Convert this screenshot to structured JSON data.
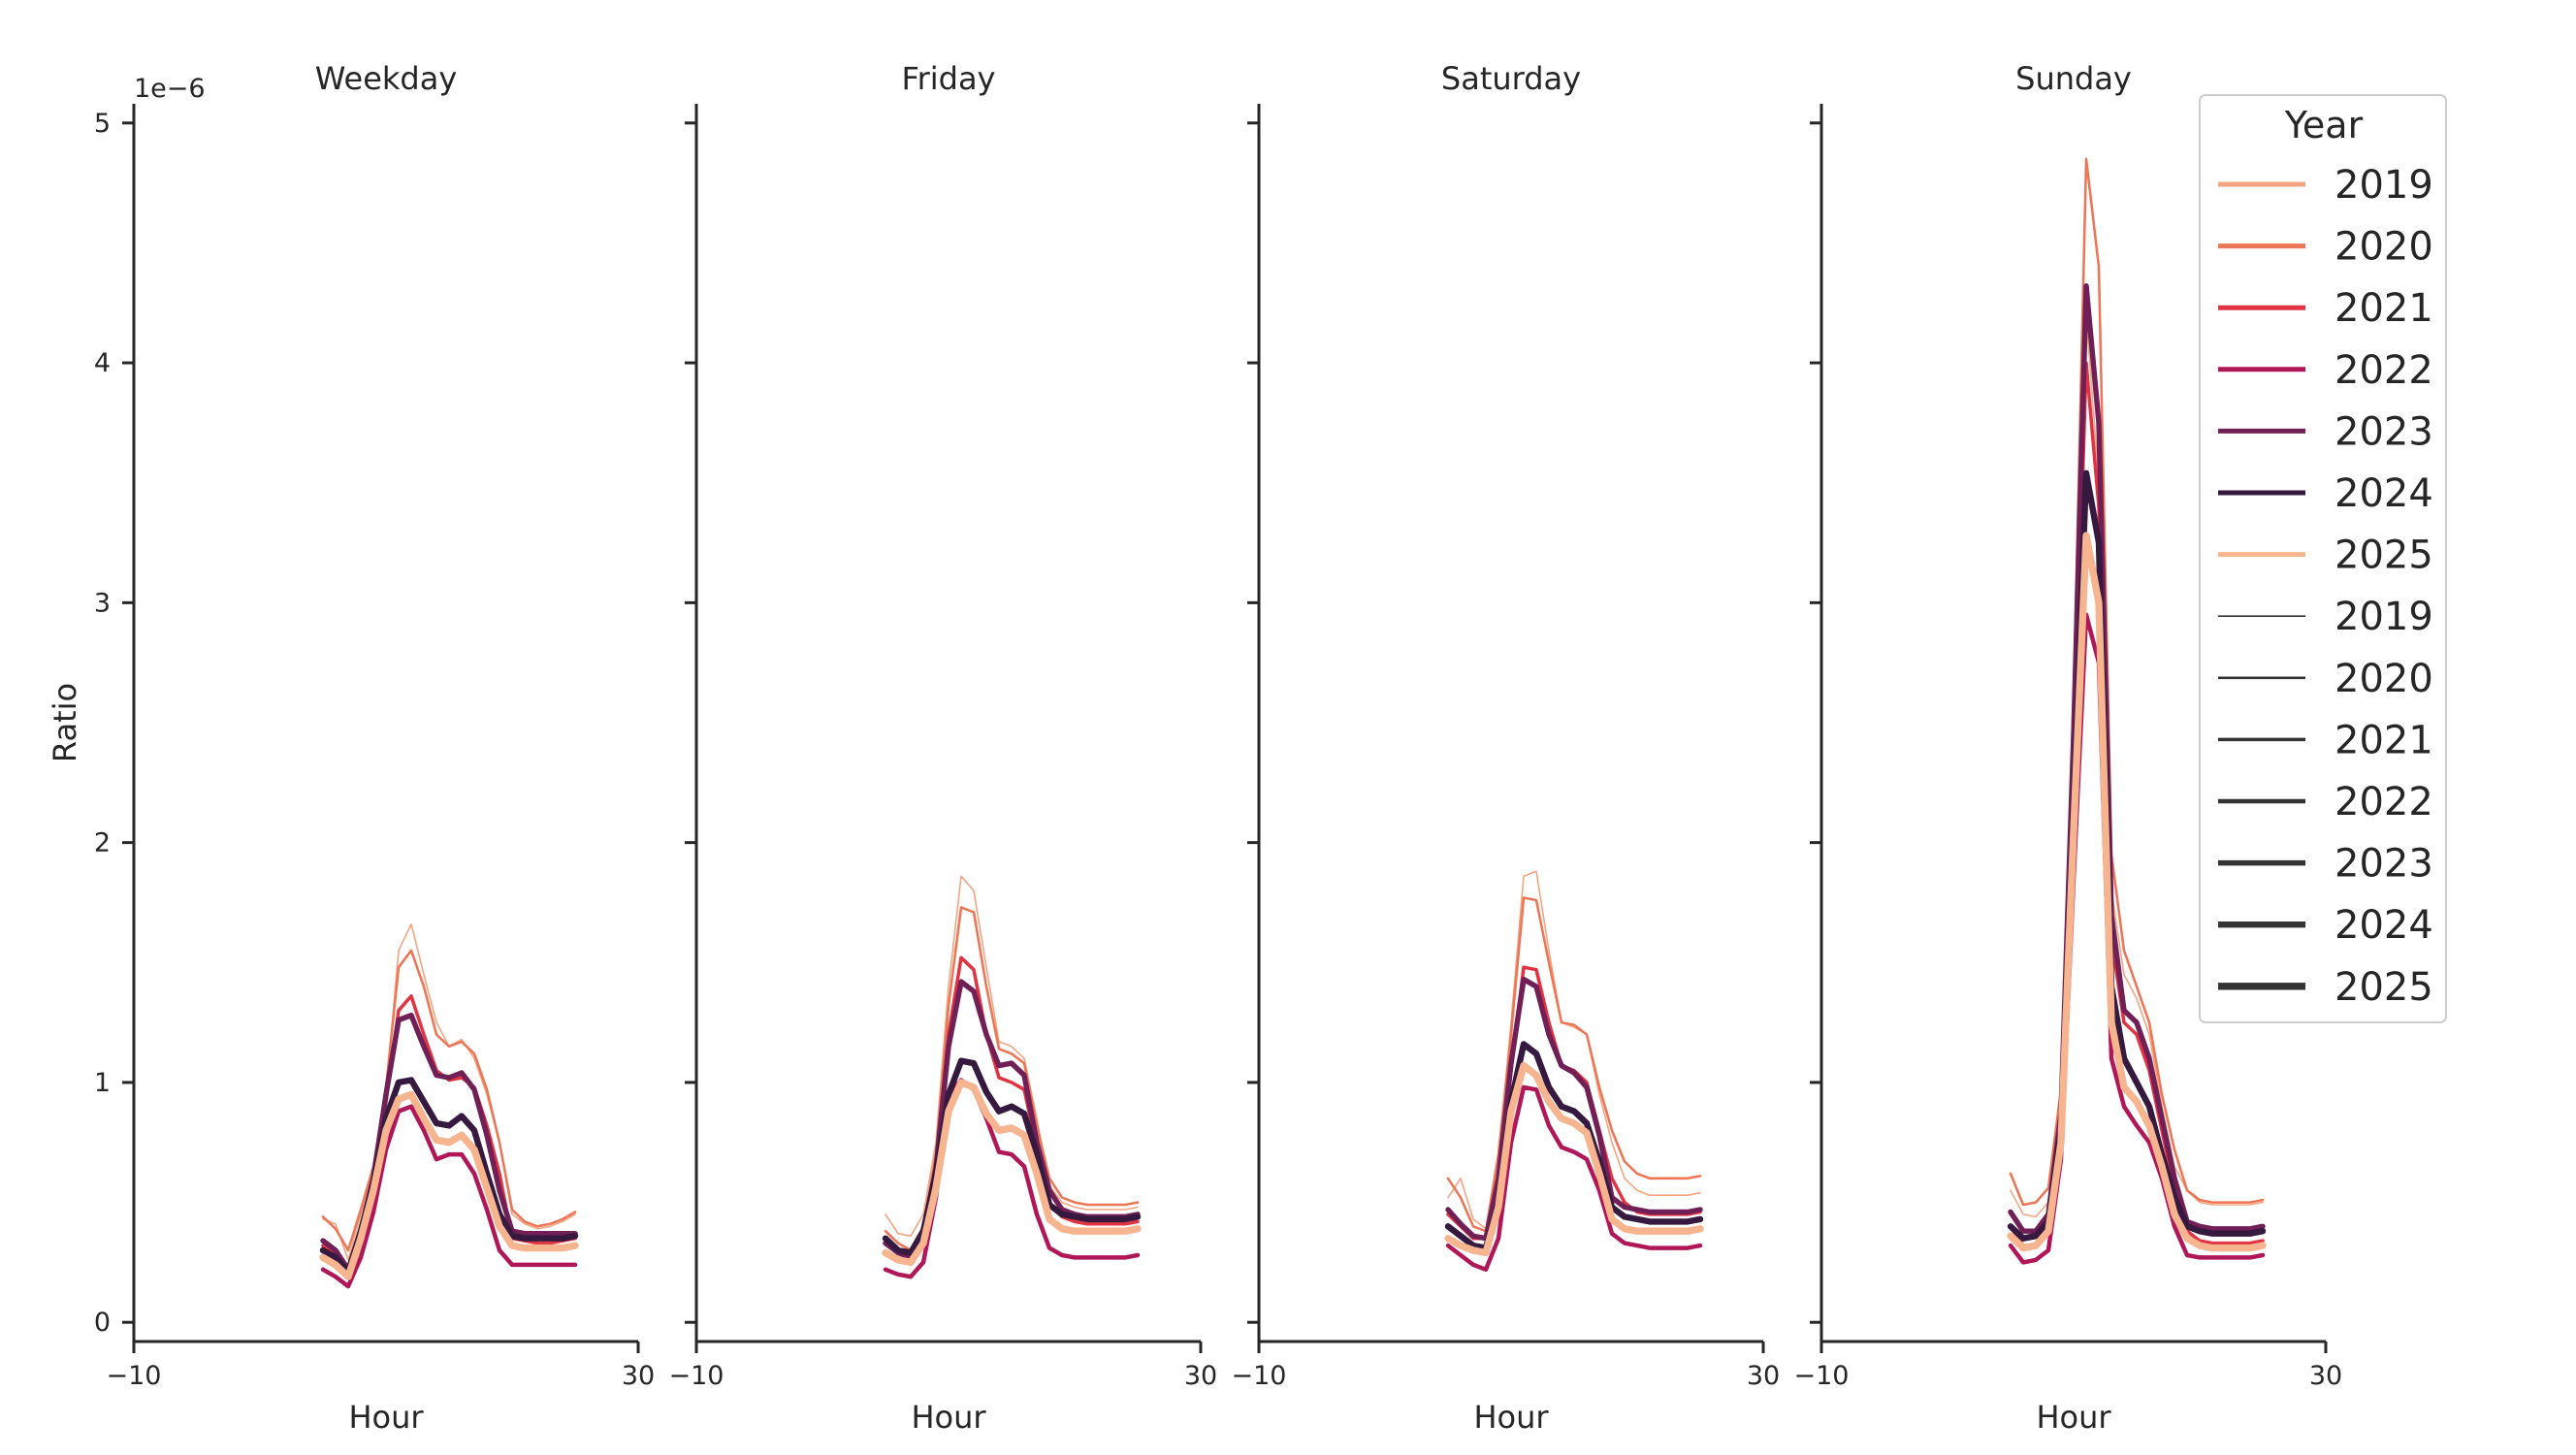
{
  "chart_data": {
    "type": "line",
    "ylabel": "Ratio",
    "y_offset_label": "1e−6",
    "ylim": [
      -0.08,
      5.08
    ],
    "yticks": [
      0,
      1,
      2,
      3,
      4,
      5
    ],
    "xlim": [
      -10,
      30
    ],
    "xticks": [
      "−10",
      "30"
    ],
    "x": [
      5,
      6,
      7,
      8,
      9,
      10,
      11,
      12,
      13,
      14,
      15,
      16,
      17,
      18,
      19,
      20,
      21,
      22,
      23,
      24,
      25
    ],
    "legend": {
      "title": "Year",
      "position": "upper right",
      "hue_entries": [
        "2019",
        "2020",
        "2021",
        "2022",
        "2023",
        "2024",
        "2025"
      ],
      "size_entries": [
        "2019",
        "2020",
        "2021",
        "2022",
        "2023",
        "2024",
        "2025"
      ]
    },
    "year_styles": [
      {
        "year": "2019",
        "color": "#f3a582",
        "width": 1.0
      },
      {
        "year": "2020",
        "color": "#ed7657",
        "width": 1.6
      },
      {
        "year": "2021",
        "color": "#e13342",
        "width": 2.2
      },
      {
        "year": "2022",
        "color": "#b01759",
        "width": 2.8
      },
      {
        "year": "2023",
        "color": "#701f57",
        "width": 3.4
      },
      {
        "year": "2024",
        "color": "#35193e",
        "width": 4.0
      },
      {
        "year": "2025",
        "color": "#f6b48f",
        "width": 4.6
      }
    ],
    "panels": [
      {
        "title": "Weekday",
        "series": [
          {
            "year": "2019",
            "values": [
              0.43,
              0.41,
              0.26,
              0.45,
              0.62,
              0.95,
              1.55,
              1.66,
              1.45,
              1.25,
              1.15,
              1.18,
              1.1,
              0.95,
              0.75,
              0.45,
              0.41,
              0.39,
              0.4,
              0.42,
              0.45
            ]
          },
          {
            "year": "2020",
            "values": [
              0.44,
              0.39,
              0.3,
              0.47,
              0.65,
              0.98,
              1.48,
              1.55,
              1.4,
              1.2,
              1.15,
              1.17,
              1.12,
              0.97,
              0.75,
              0.47,
              0.42,
              0.4,
              0.41,
              0.43,
              0.46
            ]
          },
          {
            "year": "2021",
            "values": [
              0.32,
              0.28,
              0.2,
              0.38,
              0.6,
              0.92,
              1.3,
              1.36,
              1.2,
              1.05,
              1.01,
              1.02,
              0.98,
              0.82,
              0.62,
              0.35,
              0.34,
              0.33,
              0.33,
              0.34,
              0.35
            ]
          },
          {
            "year": "2022",
            "values": [
              0.22,
              0.19,
              0.15,
              0.27,
              0.46,
              0.72,
              0.88,
              0.9,
              0.8,
              0.68,
              0.7,
              0.7,
              0.62,
              0.47,
              0.3,
              0.24,
              0.24,
              0.24,
              0.24,
              0.24,
              0.24
            ]
          },
          {
            "year": "2023",
            "values": [
              0.34,
              0.3,
              0.22,
              0.38,
              0.6,
              0.95,
              1.26,
              1.28,
              1.15,
              1.03,
              1.02,
              1.04,
              0.97,
              0.78,
              0.55,
              0.38,
              0.37,
              0.37,
              0.37,
              0.37,
              0.37
            ]
          },
          {
            "year": "2024",
            "values": [
              0.3,
              0.27,
              0.21,
              0.38,
              0.58,
              0.85,
              1.0,
              1.01,
              0.92,
              0.83,
              0.82,
              0.86,
              0.8,
              0.62,
              0.45,
              0.36,
              0.35,
              0.35,
              0.35,
              0.35,
              0.36
            ]
          },
          {
            "year": "2025",
            "values": [
              0.27,
              0.24,
              0.19,
              0.35,
              0.55,
              0.8,
              0.93,
              0.95,
              0.85,
              0.76,
              0.75,
              0.78,
              0.72,
              0.56,
              0.4,
              0.32,
              0.31,
              0.31,
              0.31,
              0.31,
              0.32
            ]
          }
        ]
      },
      {
        "title": "Friday",
        "series": [
          {
            "year": "2019",
            "values": [
              0.45,
              0.37,
              0.36,
              0.45,
              0.75,
              1.4,
              1.86,
              1.8,
              1.48,
              1.17,
              1.15,
              1.1,
              0.85,
              0.57,
              0.5,
              0.48,
              0.47,
              0.47,
              0.47,
              0.47,
              0.48
            ]
          },
          {
            "year": "2020",
            "values": [
              0.38,
              0.33,
              0.3,
              0.4,
              0.7,
              1.32,
              1.73,
              1.71,
              1.4,
              1.14,
              1.12,
              1.08,
              0.82,
              0.6,
              0.52,
              0.5,
              0.49,
              0.49,
              0.49,
              0.49,
              0.5
            ]
          },
          {
            "year": "2021",
            "values": [
              0.34,
              0.3,
              0.28,
              0.38,
              0.66,
              1.2,
              1.52,
              1.47,
              1.2,
              1.02,
              1.0,
              0.97,
              0.73,
              0.5,
              0.44,
              0.42,
              0.41,
              0.41,
              0.41,
              0.41,
              0.42
            ]
          },
          {
            "year": "2022",
            "values": [
              0.22,
              0.2,
              0.19,
              0.25,
              0.52,
              0.95,
              1.01,
              0.97,
              0.85,
              0.71,
              0.7,
              0.65,
              0.45,
              0.31,
              0.28,
              0.27,
              0.27,
              0.27,
              0.27,
              0.27,
              0.28
            ]
          },
          {
            "year": "2023",
            "values": [
              0.33,
              0.29,
              0.27,
              0.37,
              0.64,
              1.15,
              1.42,
              1.38,
              1.2,
              1.07,
              1.08,
              1.03,
              0.75,
              0.55,
              0.47,
              0.45,
              0.44,
              0.44,
              0.44,
              0.44,
              0.45
            ]
          },
          {
            "year": "2024",
            "values": [
              0.35,
              0.3,
              0.29,
              0.38,
              0.62,
              0.95,
              1.09,
              1.08,
              0.96,
              0.88,
              0.9,
              0.87,
              0.7,
              0.49,
              0.45,
              0.44,
              0.43,
              0.43,
              0.43,
              0.43,
              0.44
            ]
          },
          {
            "year": "2025",
            "values": [
              0.29,
              0.26,
              0.25,
              0.33,
              0.56,
              0.88,
              1.0,
              0.98,
              0.87,
              0.8,
              0.81,
              0.78,
              0.62,
              0.43,
              0.39,
              0.38,
              0.38,
              0.38,
              0.38,
              0.38,
              0.39
            ]
          }
        ]
      },
      {
        "title": "Saturday",
        "series": [
          {
            "year": "2019",
            "values": [
              0.52,
              0.6,
              0.43,
              0.39,
              0.68,
              1.25,
              1.86,
              1.88,
              1.55,
              1.25,
              1.23,
              1.2,
              0.95,
              0.75,
              0.6,
              0.55,
              0.53,
              0.53,
              0.53,
              0.53,
              0.54
            ]
          },
          {
            "year": "2020",
            "values": [
              0.6,
              0.52,
              0.4,
              0.38,
              0.7,
              1.2,
              1.77,
              1.76,
              1.5,
              1.25,
              1.24,
              1.2,
              0.98,
              0.8,
              0.67,
              0.62,
              0.6,
              0.6,
              0.6,
              0.6,
              0.61
            ]
          },
          {
            "year": "2021",
            "values": [
              0.45,
              0.4,
              0.35,
              0.35,
              0.6,
              1.05,
              1.48,
              1.47,
              1.25,
              1.07,
              1.05,
              1.0,
              0.8,
              0.6,
              0.5,
              0.46,
              0.45,
              0.45,
              0.45,
              0.45,
              0.46
            ]
          },
          {
            "year": "2022",
            "values": [
              0.32,
              0.28,
              0.24,
              0.22,
              0.35,
              0.75,
              0.98,
              0.97,
              0.82,
              0.73,
              0.71,
              0.68,
              0.55,
              0.37,
              0.33,
              0.32,
              0.31,
              0.31,
              0.31,
              0.31,
              0.32
            ]
          },
          {
            "year": "2023",
            "values": [
              0.47,
              0.41,
              0.36,
              0.35,
              0.6,
              1.08,
              1.43,
              1.4,
              1.2,
              1.07,
              1.04,
              0.98,
              0.78,
              0.52,
              0.48,
              0.47,
              0.46,
              0.46,
              0.46,
              0.46,
              0.47
            ]
          },
          {
            "year": "2024",
            "values": [
              0.4,
              0.36,
              0.32,
              0.31,
              0.5,
              0.92,
              1.16,
              1.12,
              0.98,
              0.9,
              0.88,
              0.83,
              0.67,
              0.48,
              0.44,
              0.43,
              0.42,
              0.42,
              0.42,
              0.42,
              0.43
            ]
          },
          {
            "year": "2025",
            "values": [
              0.35,
              0.32,
              0.3,
              0.29,
              0.48,
              0.88,
              1.07,
              1.03,
              0.92,
              0.85,
              0.83,
              0.79,
              0.62,
              0.43,
              0.39,
              0.38,
              0.38,
              0.38,
              0.38,
              0.38,
              0.39
            ]
          }
        ]
      },
      {
        "title": "Sunday",
        "series": [
          {
            "year": "2019",
            "values": [
              0.55,
              0.45,
              0.44,
              0.5,
              0.9,
              2.4,
              4.2,
              3.5,
              1.8,
              1.45,
              1.35,
              1.2,
              0.9,
              0.65,
              0.55,
              0.5,
              0.49,
              0.49,
              0.49,
              0.49,
              0.5
            ]
          },
          {
            "year": "2020",
            "values": [
              0.62,
              0.49,
              0.5,
              0.56,
              0.97,
              2.6,
              4.85,
              4.4,
              1.95,
              1.55,
              1.4,
              1.25,
              0.95,
              0.72,
              0.55,
              0.51,
              0.5,
              0.5,
              0.5,
              0.5,
              0.51
            ]
          },
          {
            "year": "2021",
            "values": [
              0.4,
              0.32,
              0.32,
              0.4,
              0.8,
              2.3,
              4.0,
              3.4,
              1.6,
              1.25,
              1.2,
              1.05,
              0.8,
              0.55,
              0.38,
              0.34,
              0.33,
              0.33,
              0.33,
              0.33,
              0.34
            ]
          },
          {
            "year": "2022",
            "values": [
              0.32,
              0.25,
              0.26,
              0.3,
              0.68,
              1.85,
              2.95,
              2.75,
              1.1,
              0.9,
              0.82,
              0.75,
              0.6,
              0.4,
              0.28,
              0.27,
              0.27,
              0.27,
              0.27,
              0.27,
              0.28
            ]
          },
          {
            "year": "2023",
            "values": [
              0.46,
              0.38,
              0.38,
              0.45,
              0.87,
              2.45,
              4.32,
              3.75,
              1.7,
              1.3,
              1.25,
              1.1,
              0.85,
              0.6,
              0.42,
              0.4,
              0.39,
              0.39,
              0.39,
              0.39,
              0.4
            ]
          },
          {
            "year": "2024",
            "values": [
              0.4,
              0.35,
              0.36,
              0.42,
              0.8,
              2.15,
              3.54,
              3.25,
              1.4,
              1.1,
              1.0,
              0.9,
              0.7,
              0.52,
              0.4,
              0.38,
              0.37,
              0.37,
              0.37,
              0.37,
              0.38
            ]
          },
          {
            "year": "2025",
            "values": [
              0.36,
              0.31,
              0.32,
              0.38,
              0.75,
              2.05,
              3.28,
              3.0,
              1.25,
              0.98,
              0.92,
              0.82,
              0.65,
              0.45,
              0.35,
              0.32,
              0.31,
              0.31,
              0.31,
              0.31,
              0.32
            ]
          }
        ]
      }
    ]
  }
}
